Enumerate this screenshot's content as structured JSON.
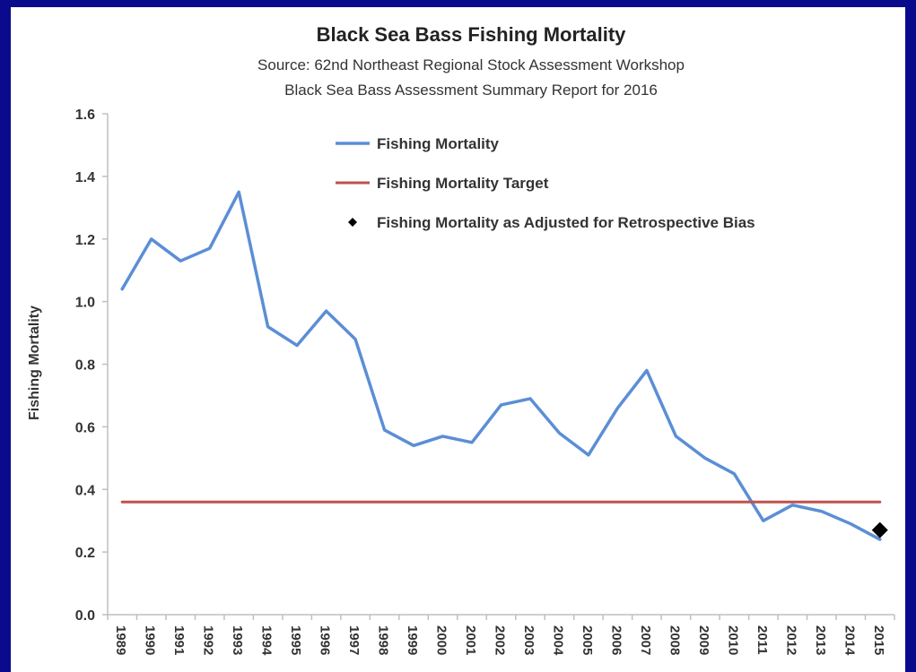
{
  "chart_data": {
    "type": "line",
    "title": "Black Sea Bass Fishing Mortality",
    "subtitle_lines": [
      "Source: 62nd Northeast Regional Stock Assessment Workshop",
      "Black Sea Bass Assessment Summary Report for 2016"
    ],
    "ylabel": "Fishing Mortality",
    "xlabel": "",
    "ylim": [
      0.0,
      1.6
    ],
    "yticks": [
      "0.0",
      "0.2",
      "0.4",
      "0.6",
      "0.8",
      "1.0",
      "1.2",
      "1.4",
      "1.6"
    ],
    "categories": [
      "1989",
      "1990",
      "1991",
      "1992",
      "1993",
      "1994",
      "1995",
      "1996",
      "1997",
      "1998",
      "1999",
      "2000",
      "2001",
      "2002",
      "2003",
      "2004",
      "2005",
      "2006",
      "2007",
      "2008",
      "2009",
      "2010",
      "2011",
      "2012",
      "2013",
      "2014",
      "2015"
    ],
    "series": [
      {
        "name": "Fishing Mortality",
        "color": "#5b8ed6",
        "values": [
          1.04,
          1.2,
          1.13,
          1.17,
          1.35,
          0.92,
          0.86,
          0.97,
          0.88,
          0.59,
          0.54,
          0.57,
          0.55,
          0.67,
          0.69,
          0.58,
          0.51,
          0.66,
          0.78,
          0.57,
          0.5,
          0.45,
          0.3,
          0.35,
          0.33,
          0.29,
          0.24
        ]
      },
      {
        "name": "Fishing Mortality Target",
        "color": "#c0504d",
        "values": [
          0.36,
          0.36,
          0.36,
          0.36,
          0.36,
          0.36,
          0.36,
          0.36,
          0.36,
          0.36,
          0.36,
          0.36,
          0.36,
          0.36,
          0.36,
          0.36,
          0.36,
          0.36,
          0.36,
          0.36,
          0.36,
          0.36,
          0.36,
          0.36,
          0.36,
          0.36,
          0.36
        ]
      }
    ],
    "points": [
      {
        "name": "Fishing Mortality as Adjusted for Retrospective Bias",
        "category": "2015",
        "value": 0.27,
        "color": "#000000"
      }
    ],
    "legend": {
      "placement": "top-center",
      "entries": [
        "Fishing Mortality",
        "Fishing Mortality Target",
        "Fishing Mortality as Adjusted for Retrospective Bias"
      ]
    },
    "grid": false
  }
}
